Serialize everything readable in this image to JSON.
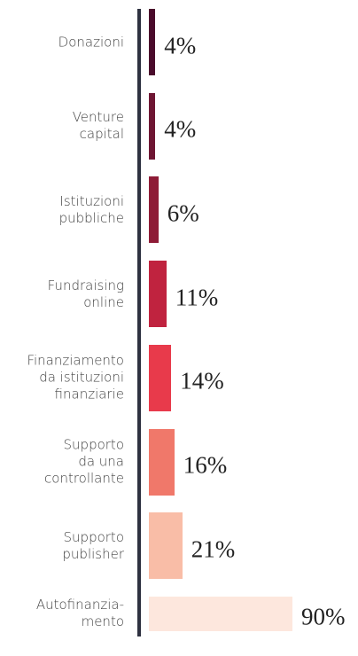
{
  "chart_data": {
    "type": "barh",
    "categories": [
      "Donazioni",
      "Venture\ncapital",
      "Istituzioni\npubbliche",
      "Fundraising\nonline",
      "Finanziamento\nda istituzioni\nfinanziarie",
      "Supporto\nda una\ncontrollante",
      "Supporto\npublisher",
      "Autofinanzia-\nmento"
    ],
    "values": [
      4,
      4,
      6,
      11,
      14,
      16,
      21,
      90
    ],
    "value_labels": [
      "4%",
      "4%",
      "6%",
      "11%",
      "14%",
      "16%",
      "21%",
      "90%"
    ],
    "colors": [
      "#4a0b2b",
      "#6e1633",
      "#8e1b36",
      "#c0233f",
      "#e83a4b",
      "#f0786a",
      "#f9bda7",
      "#fde7dd"
    ]
  }
}
